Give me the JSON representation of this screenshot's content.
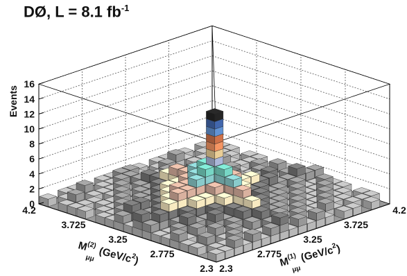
{
  "chart_data": {
    "type": "lego3d",
    "title": {
      "text": "DØ, L = 8.1 fb",
      "sup": "-1"
    },
    "zlabel": "Events",
    "xlabel": {
      "main": "M",
      "sup": "(1)",
      "sub": "μμ",
      "unit": " (GeV/c",
      "unit_sup": "2",
      "close": ")"
    },
    "ylabel": {
      "main": "M",
      "sup": "(2)",
      "sub": "μμ",
      "unit": " (GeV/c",
      "unit_sup": "2",
      "close": ")"
    },
    "xlim": [
      2.3,
      4.2
    ],
    "ylim": [
      2.3,
      4.2
    ],
    "zlim": [
      0,
      16
    ],
    "x_ticks": [
      "2.3",
      "2.775",
      "3.25",
      "3.725",
      "4.2"
    ],
    "y_ticks": [
      "2.3",
      "2.775",
      "3.25",
      "3.725",
      "4.2"
    ],
    "z_ticks": [
      "0",
      "2",
      "4",
      "6",
      "8",
      "10",
      "12",
      "14",
      "16"
    ],
    "bins_x": 19,
    "bins_y": 19,
    "grid": true,
    "peak": {
      "x_bin": 7,
      "y_bin": 7,
      "value": 14
    },
    "layer_colors": [
      "#aaaaaa",
      "#8d8d8d",
      "#6e6e6e",
      "#e6d9b3",
      "#c9a493",
      "#7fbcbc",
      "#6ec6b6",
      "#9fa9c9",
      "#d9bf8c",
      "#e38a5c",
      "#c06a44",
      "#5b88c4",
      "#3d5fa0",
      "#222222"
    ],
    "counts": [
      [
        1,
        0,
        1,
        1,
        2,
        1,
        1,
        2,
        3,
        1,
        2,
        1,
        1,
        0,
        1,
        1,
        1,
        0,
        1
      ],
      [
        1,
        1,
        2,
        0,
        1,
        2,
        1,
        3,
        2,
        2,
        3,
        2,
        1,
        1,
        0,
        1,
        2,
        1,
        0
      ],
      [
        2,
        1,
        0,
        1,
        2,
        3,
        2,
        4,
        3,
        2,
        3,
        1,
        2,
        1,
        1,
        1,
        0,
        1,
        1
      ],
      [
        1,
        2,
        1,
        2,
        1,
        2,
        3,
        5,
        4,
        3,
        2,
        2,
        1,
        2,
        1,
        0,
        1,
        2,
        1
      ],
      [
        2,
        1,
        2,
        1,
        3,
        2,
        4,
        5,
        5,
        4,
        3,
        2,
        2,
        1,
        2,
        1,
        1,
        0,
        1
      ],
      [
        1,
        0,
        1,
        2,
        2,
        3,
        4,
        6,
        5,
        3,
        4,
        3,
        2,
        2,
        1,
        2,
        1,
        1,
        0
      ],
      [
        2,
        1,
        2,
        3,
        3,
        4,
        5,
        7,
        6,
        5,
        4,
        3,
        3,
        2,
        2,
        1,
        2,
        1,
        1
      ],
      [
        3,
        2,
        3,
        4,
        5,
        6,
        7,
        14,
        7,
        6,
        5,
        5,
        4,
        3,
        3,
        2,
        2,
        2,
        1
      ],
      [
        1,
        2,
        1,
        3,
        2,
        3,
        5,
        6,
        5,
        4,
        3,
        3,
        2,
        2,
        1,
        1,
        1,
        2,
        1
      ],
      [
        2,
        1,
        2,
        2,
        3,
        2,
        4,
        5,
        4,
        3,
        3,
        2,
        2,
        1,
        2,
        1,
        0,
        1,
        1
      ],
      [
        1,
        2,
        1,
        2,
        2,
        3,
        3,
        4,
        3,
        2,
        2,
        3,
        1,
        2,
        1,
        2,
        1,
        0,
        1
      ],
      [
        2,
        1,
        2,
        1,
        2,
        2,
        3,
        4,
        3,
        3,
        2,
        2,
        2,
        1,
        1,
        1,
        2,
        1,
        0
      ],
      [
        1,
        1,
        1,
        2,
        1,
        2,
        2,
        3,
        2,
        2,
        3,
        1,
        2,
        1,
        2,
        1,
        1,
        1,
        1
      ],
      [
        0,
        2,
        1,
        1,
        2,
        1,
        2,
        3,
        2,
        1,
        2,
        2,
        1,
        2,
        1,
        1,
        0,
        2,
        1
      ],
      [
        1,
        1,
        2,
        1,
        1,
        2,
        1,
        2,
        3,
        2,
        1,
        1,
        2,
        1,
        1,
        0,
        1,
        1,
        0
      ],
      [
        1,
        0,
        1,
        2,
        1,
        1,
        2,
        2,
        1,
        2,
        2,
        1,
        1,
        0,
        2,
        1,
        1,
        0,
        1
      ],
      [
        0,
        1,
        1,
        1,
        2,
        1,
        1,
        3,
        2,
        1,
        1,
        2,
        0,
        1,
        1,
        1,
        0,
        1,
        0
      ],
      [
        1,
        1,
        0,
        1,
        1,
        2,
        1,
        2,
        1,
        1,
        2,
        1,
        1,
        1,
        0,
        1,
        1,
        0,
        1
      ],
      [
        0,
        1,
        1,
        0,
        1,
        1,
        1,
        2,
        1,
        0,
        1,
        1,
        0,
        1,
        1,
        0,
        1,
        1,
        0
      ]
    ]
  }
}
